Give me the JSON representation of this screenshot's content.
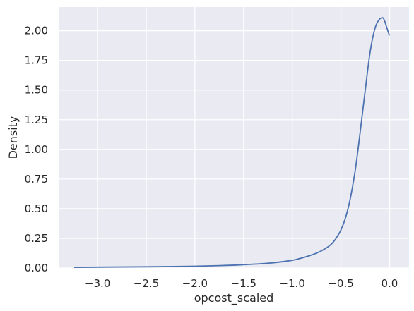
{
  "chart_data": {
    "type": "line",
    "title": "",
    "xlabel": "opcost_scaled",
    "ylabel": "Density",
    "xlim": [
      -3.4,
      0.2
    ],
    "ylim": [
      0,
      2.2
    ],
    "xticks": [
      -3.0,
      -2.5,
      -2.0,
      -1.5,
      -1.0,
      -0.5,
      0.0
    ],
    "xtick_labels": [
      "−3.0",
      "−2.5",
      "−2.0",
      "−1.5",
      "−1.0",
      "−0.5",
      "0.0"
    ],
    "yticks": [
      0,
      0.25,
      0.5,
      0.75,
      1.0,
      1.25,
      1.5,
      1.75,
      2.0
    ],
    "ytick_labels": [
      "0.00",
      "0.25",
      "0.50",
      "0.75",
      "1.00",
      "1.25",
      "1.50",
      "1.75",
      "2.00"
    ],
    "grid": true,
    "legend": "none",
    "colors": {
      "background": "#eaeaf2",
      "grid": "#ffffff",
      "line": "#4c72b0"
    },
    "series": [
      {
        "x": [
          -3.24,
          -3.0,
          -2.5,
          -2.0,
          -1.75,
          -1.5,
          -1.25,
          -1.0,
          -0.9,
          -0.8,
          -0.7,
          -0.6,
          -0.55,
          -0.5,
          -0.45,
          -0.4,
          -0.35,
          -0.3,
          -0.25,
          -0.2,
          -0.15,
          -0.1,
          -0.07,
          -0.05,
          -0.03,
          -0.01,
          0.0
        ],
        "y": [
          0.005,
          0.007,
          0.01,
          0.015,
          0.02,
          0.028,
          0.04,
          0.065,
          0.085,
          0.11,
          0.145,
          0.2,
          0.25,
          0.32,
          0.43,
          0.6,
          0.84,
          1.16,
          1.5,
          1.82,
          2.02,
          2.1,
          2.11,
          2.08,
          2.03,
          1.98,
          1.96
        ]
      }
    ]
  }
}
